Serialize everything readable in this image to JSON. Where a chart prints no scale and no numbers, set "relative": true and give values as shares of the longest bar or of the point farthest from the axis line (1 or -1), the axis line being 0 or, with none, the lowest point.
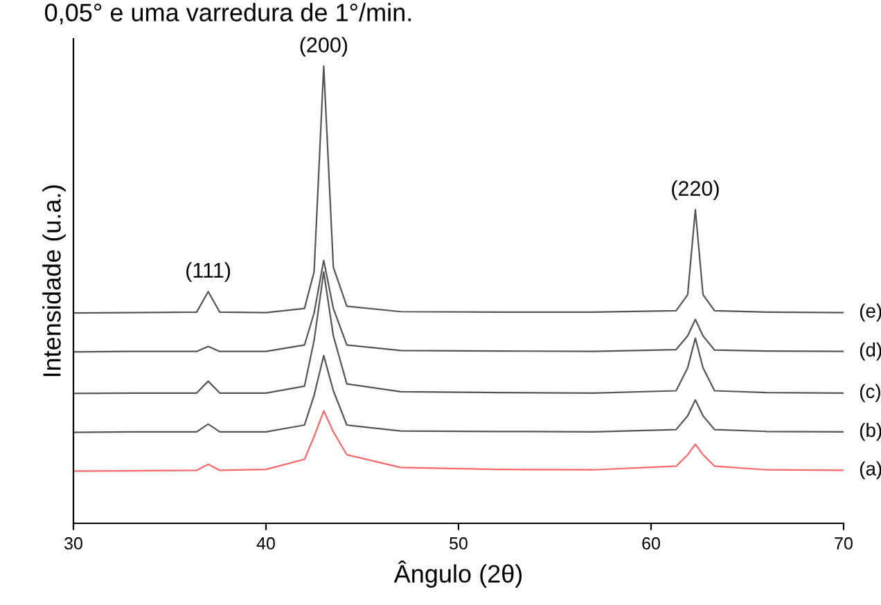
{
  "chart_data": {
    "type": "line",
    "relative": true,
    "xlabel": "Ângulo (2θ)",
    "ylabel": "Intensidade (u.a.)",
    "xlim": [
      30,
      70
    ],
    "xticks": [
      30,
      40,
      50,
      60,
      70
    ],
    "tick_labels": "x",
    "grid": false,
    "legend": false,
    "x": [
      30,
      33,
      36.4,
      37.0,
      37.6,
      40,
      42.0,
      42.5,
      43.0,
      43.5,
      44.2,
      47,
      52,
      57,
      61.3,
      61.9,
      62.3,
      62.7,
      63.3,
      66,
      70
    ],
    "series": [
      {
        "name": "(e)",
        "color": "#555555",
        "values": [
          0.46,
          0.461,
          0.462,
          0.507,
          0.462,
          0.461,
          0.47,
          0.55,
          1.0,
          0.56,
          0.475,
          0.463,
          0.462,
          0.462,
          0.465,
          0.5,
          0.686,
          0.5,
          0.465,
          0.462,
          0.461
        ]
      },
      {
        "name": "(d)",
        "color": "#555555",
        "values": [
          0.375,
          0.376,
          0.376,
          0.387,
          0.376,
          0.376,
          0.39,
          0.46,
          0.575,
          0.47,
          0.39,
          0.378,
          0.377,
          0.376,
          0.38,
          0.41,
          0.446,
          0.41,
          0.379,
          0.377,
          0.376
        ]
      },
      {
        "name": "(c)",
        "color": "#555555",
        "values": [
          0.284,
          0.285,
          0.285,
          0.311,
          0.285,
          0.285,
          0.3,
          0.4,
          0.55,
          0.41,
          0.305,
          0.288,
          0.286,
          0.285,
          0.29,
          0.34,
          0.405,
          0.34,
          0.29,
          0.286,
          0.285
        ]
      },
      {
        "name": "(b)",
        "color": "#555555",
        "values": [
          0.199,
          0.2,
          0.2,
          0.217,
          0.2,
          0.2,
          0.215,
          0.28,
          0.367,
          0.29,
          0.215,
          0.202,
          0.201,
          0.2,
          0.205,
          0.235,
          0.27,
          0.235,
          0.205,
          0.201,
          0.2
        ]
      },
      {
        "name": "(a)",
        "color": "#ff6666",
        "values": [
          0.114,
          0.115,
          0.116,
          0.129,
          0.116,
          0.118,
          0.14,
          0.19,
          0.246,
          0.2,
          0.15,
          0.122,
          0.118,
          0.117,
          0.125,
          0.15,
          0.173,
          0.15,
          0.125,
          0.117,
          0.116
        ]
      }
    ],
    "annotations": [
      "0,05° e uma varredura de 1°/min.",
      {
        "text": "(111)",
        "x": 37,
        "y": 0.507
      },
      {
        "text": "(200)",
        "x": 43,
        "y": 1.0
      },
      {
        "text": "(220)",
        "x": 62.3,
        "y": 0.686
      }
    ]
  }
}
